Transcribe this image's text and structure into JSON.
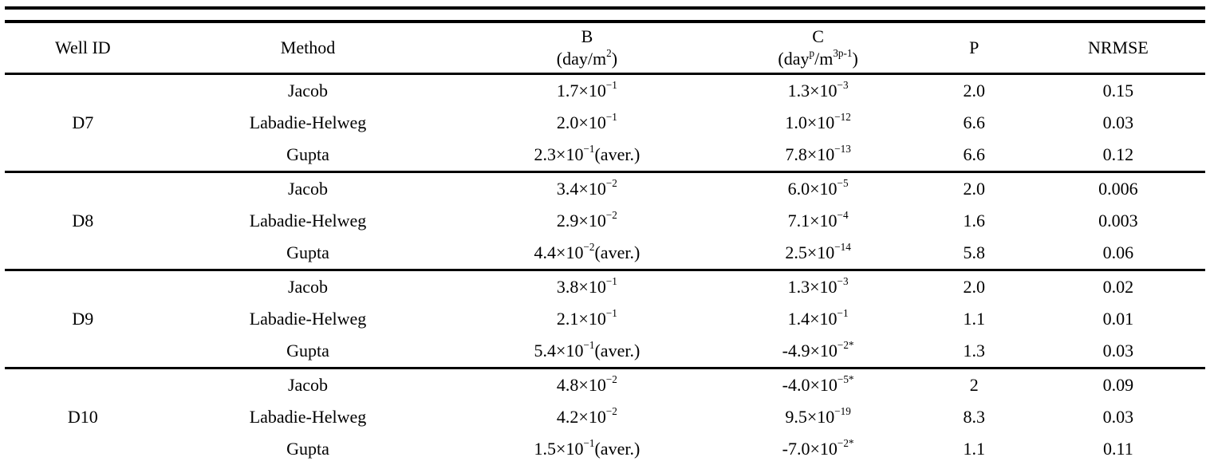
{
  "page": {
    "background": "#ffffff",
    "text_color": "#000000",
    "rule_color": "#000000"
  },
  "table": {
    "columns": [
      {
        "label": "Well ID"
      },
      {
        "label": "Method"
      },
      {
        "label": "B",
        "unit": "(day/m^{2})"
      },
      {
        "label": "C",
        "unit": "(day^{p}/m^{3p-1})"
      },
      {
        "label": "P"
      },
      {
        "label": "NRMSE"
      }
    ],
    "groups": [
      {
        "well": "D7",
        "rows": [
          {
            "method": "Jacob",
            "b": "1.7×10^{−1}",
            "c": "1.3×10^{−3}",
            "p": "2.0",
            "nrmse": "0.15"
          },
          {
            "method": "Labadie-Helweg",
            "b": "2.0×10^{−1}",
            "c": "1.0×10^{−12}",
            "p": "6.6",
            "nrmse": "0.03"
          },
          {
            "method": "Gupta",
            "b": "2.3×10^{−1}(aver.)",
            "c": "7.8×10^{−13}",
            "p": "6.6",
            "nrmse": "0.12"
          }
        ]
      },
      {
        "well": "D8",
        "rows": [
          {
            "method": "Jacob",
            "b": "3.4×10^{−2}",
            "c": "6.0×10^{−5}",
            "p": "2.0",
            "nrmse": "0.006"
          },
          {
            "method": "Labadie-Helweg",
            "b": "2.9×10^{−2}",
            "c": "7.1×10^{−4}",
            "p": "1.6",
            "nrmse": "0.003"
          },
          {
            "method": "Gupta",
            "b": "4.4×10^{−2}(aver.)",
            "c": "2.5×10^{−14}",
            "p": "5.8",
            "nrmse": "0.06"
          }
        ]
      },
      {
        "well": "D9",
        "rows": [
          {
            "method": "Jacob",
            "b": "3.8×10^{−1}",
            "c": "1.3×10^{−3}",
            "p": "2.0",
            "nrmse": "0.02"
          },
          {
            "method": "Labadie-Helweg",
            "b": "2.1×10^{−1}",
            "c": "1.4×10^{−1}",
            "p": "1.1",
            "nrmse": "0.01"
          },
          {
            "method": "Gupta",
            "b": "5.4×10^{−1}(aver.)",
            "c": "-4.9×10^{−2*}",
            "p": "1.3",
            "nrmse": "0.03"
          }
        ]
      },
      {
        "well": "D10",
        "rows": [
          {
            "method": "Jacob",
            "b": "4.8×10^{−2}",
            "c": "-4.0×10^{−5*}",
            "p": "2",
            "nrmse": "0.09"
          },
          {
            "method": "Labadie-Helweg",
            "b": "4.2×10^{−2}",
            "c": "9.5×10^{−19}",
            "p": "8.3",
            "nrmse": "0.03"
          },
          {
            "method": "Gupta",
            "b": "1.5×10^{−1}(aver.)",
            "c": "-7.0×10^{−2*}",
            "p": "1.1",
            "nrmse": "0.11"
          }
        ]
      }
    ]
  }
}
